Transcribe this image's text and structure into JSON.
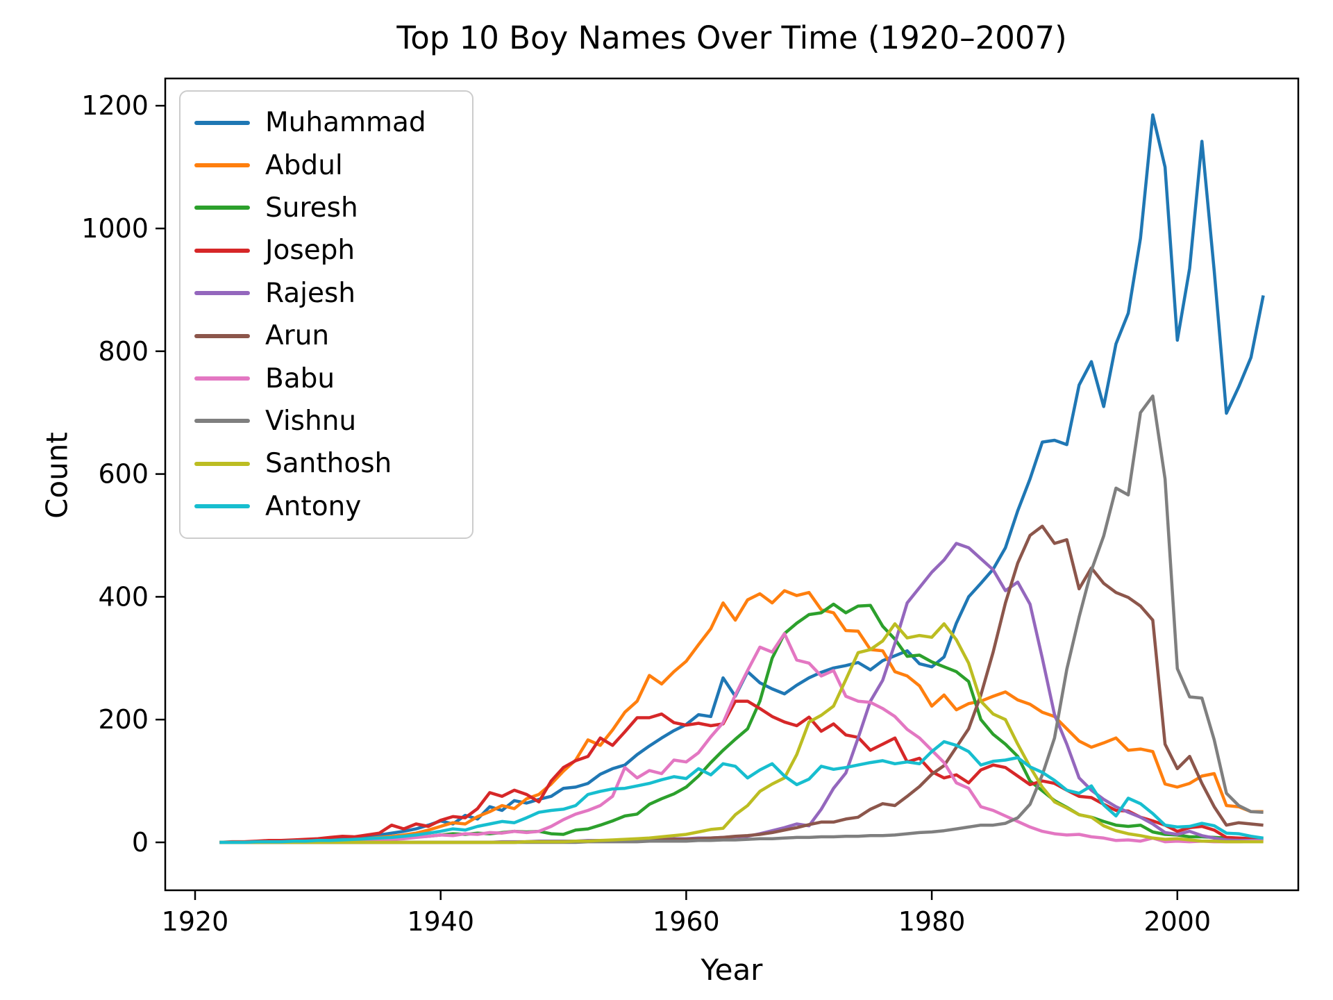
{
  "title": "Top 10 Boy Names Over Time (1920–2007)",
  "chart_data": {
    "type": "line",
    "title": "Top 10 Boy Names Over Time (1920–2007)",
    "xlabel": "Year",
    "ylabel": "Count",
    "x_start": 1922,
    "x_end": 2007,
    "x_ticks": [
      1920,
      1940,
      1960,
      1980,
      2000
    ],
    "y_ticks": [
      0,
      200,
      400,
      600,
      800,
      1000,
      1200
    ],
    "xlim": [
      1917.6,
      2009.9
    ],
    "ylim": [
      -62,
      1244
    ],
    "grid": false,
    "legend_position": "upper left",
    "axis_color": "#000000",
    "series": [
      {
        "name": "Muhammad",
        "color": "#1f77b4",
        "values": [
          0,
          0,
          0,
          1,
          1,
          2,
          2,
          3,
          4,
          5,
          6,
          8,
          10,
          12,
          15,
          18,
          22,
          28,
          35,
          30,
          44,
          38,
          58,
          52,
          68,
          64,
          70,
          75,
          88,
          90,
          96,
          111,
          120,
          126,
          143,
          157,
          170,
          182,
          192,
          208,
          205,
          268,
          238,
          278,
          260,
          250,
          242,
          256,
          268,
          277,
          284,
          288,
          293,
          281,
          296,
          304,
          312,
          291,
          286,
          302,
          357,
          400,
          422,
          445,
          480,
          540,
          592,
          652,
          655,
          648,
          745,
          783,
          710,
          812,
          862,
          984,
          1185,
          1100,
          818,
          935,
          1142,
          931,
          699,
          742,
          790,
          891
        ]
      },
      {
        "name": "Abdul",
        "color": "#ff7f0e",
        "values": [
          0,
          0,
          0,
          0,
          1,
          1,
          2,
          2,
          3,
          3,
          4,
          5,
          6,
          8,
          10,
          12,
          15,
          20,
          26,
          32,
          30,
          42,
          50,
          60,
          55,
          71,
          78,
          95,
          116,
          134,
          167,
          158,
          183,
          212,
          230,
          272,
          258,
          278,
          295,
          322,
          348,
          390,
          362,
          395,
          405,
          390,
          410,
          402,
          407,
          379,
          374,
          345,
          344,
          314,
          312,
          278,
          271,
          255,
          222,
          240,
          216,
          226,
          230,
          238,
          245,
          232,
          225,
          212,
          205,
          185,
          165,
          155,
          162,
          170,
          150,
          152,
          148,
          95,
          90,
          96,
          108,
          112,
          60,
          58,
          50,
          50
        ]
      },
      {
        "name": "Suresh",
        "color": "#2ca02c",
        "values": [
          0,
          0,
          0,
          0,
          0,
          1,
          1,
          1,
          2,
          2,
          3,
          3,
          4,
          5,
          6,
          8,
          9,
          10,
          12,
          14,
          13,
          15,
          14,
          16,
          18,
          17,
          18,
          14,
          13,
          20,
          22,
          28,
          35,
          43,
          46,
          62,
          71,
          79,
          90,
          108,
          130,
          150,
          168,
          185,
          230,
          300,
          340,
          357,
          371,
          374,
          388,
          374,
          385,
          386,
          352,
          331,
          303,
          305,
          294,
          286,
          278,
          262,
          200,
          176,
          160,
          140,
          100,
          84,
          68,
          57,
          45,
          41,
          34,
          28,
          26,
          28,
          17,
          13,
          12,
          9,
          9,
          8,
          7,
          6,
          6,
          5
        ]
      },
      {
        "name": "Joseph",
        "color": "#d62728",
        "values": [
          0,
          1,
          1,
          2,
          3,
          3,
          4,
          5,
          6,
          8,
          10,
          9,
          12,
          15,
          28,
          22,
          30,
          26,
          36,
          42,
          40,
          55,
          81,
          75,
          85,
          78,
          66,
          100,
          122,
          133,
          140,
          170,
          158,
          180,
          203,
          203,
          209,
          195,
          191,
          194,
          190,
          193,
          230,
          230,
          218,
          205,
          196,
          190,
          204,
          181,
          193,
          175,
          171,
          150,
          160,
          170,
          131,
          137,
          115,
          105,
          110,
          97,
          118,
          126,
          122,
          108,
          94,
          100,
          96,
          85,
          75,
          73,
          62,
          52,
          51,
          41,
          35,
          28,
          18,
          24,
          26,
          20,
          8,
          7,
          6,
          6
        ]
      },
      {
        "name": "Rajesh",
        "color": "#9467bd",
        "values": [
          0,
          0,
          0,
          0,
          0,
          0,
          0,
          0,
          0,
          0,
          0,
          0,
          0,
          0,
          0,
          0,
          0,
          0,
          0,
          0,
          0,
          0,
          0,
          1,
          1,
          1,
          2,
          2,
          2,
          2,
          3,
          3,
          3,
          4,
          4,
          5,
          5,
          6,
          6,
          7,
          7,
          8,
          9,
          10,
          14,
          19,
          24,
          30,
          27,
          54,
          88,
          113,
          170,
          230,
          264,
          324,
          390,
          415,
          440,
          460,
          487,
          480,
          462,
          444,
          410,
          424,
          388,
          300,
          208,
          160,
          105,
          85,
          70,
          58,
          49,
          41,
          30,
          16,
          13,
          18,
          11,
          7,
          4,
          3,
          3,
          3
        ]
      },
      {
        "name": "Arun",
        "color": "#8c564b",
        "values": [
          0,
          0,
          0,
          0,
          0,
          0,
          0,
          0,
          0,
          0,
          0,
          0,
          0,
          0,
          0,
          0,
          0,
          0,
          0,
          0,
          0,
          0,
          0,
          0,
          0,
          1,
          1,
          1,
          1,
          1,
          2,
          2,
          2,
          3,
          3,
          4,
          4,
          5,
          5,
          6,
          7,
          8,
          10,
          11,
          13,
          16,
          20,
          24,
          29,
          33,
          33,
          38,
          41,
          54,
          63,
          60,
          75,
          91,
          111,
          125,
          155,
          185,
          240,
          310,
          390,
          455,
          500,
          515,
          487,
          493,
          413,
          447,
          422,
          407,
          399,
          385,
          362,
          160,
          120,
          140,
          96,
          58,
          28,
          32,
          30,
          28
        ]
      },
      {
        "name": "Babu",
        "color": "#e377c2",
        "values": [
          0,
          0,
          0,
          0,
          0,
          0,
          1,
          1,
          1,
          2,
          2,
          3,
          3,
          4,
          5,
          6,
          8,
          10,
          12,
          11,
          14,
          13,
          16,
          15,
          18,
          16,
          18,
          26,
          37,
          46,
          52,
          60,
          75,
          122,
          105,
          117,
          112,
          134,
          131,
          146,
          172,
          195,
          240,
          280,
          318,
          310,
          340,
          297,
          292,
          271,
          280,
          238,
          230,
          228,
          218,
          205,
          184,
          170,
          150,
          130,
          97,
          88,
          58,
          52,
          43,
          34,
          25,
          18,
          14,
          12,
          13,
          9,
          7,
          3,
          4,
          2,
          7,
          1,
          2,
          1,
          2,
          1,
          1,
          1,
          2,
          2
        ]
      },
      {
        "name": "Vishnu",
        "color": "#7f7f7f",
        "values": [
          0,
          0,
          0,
          0,
          0,
          0,
          0,
          0,
          0,
          0,
          0,
          0,
          0,
          0,
          0,
          0,
          0,
          0,
          0,
          0,
          0,
          0,
          0,
          0,
          0,
          0,
          0,
          0,
          0,
          0,
          1,
          1,
          1,
          1,
          1,
          2,
          2,
          2,
          2,
          3,
          3,
          4,
          4,
          5,
          6,
          6,
          7,
          8,
          8,
          9,
          9,
          10,
          10,
          11,
          11,
          12,
          14,
          16,
          17,
          19,
          22,
          25,
          28,
          28,
          31,
          40,
          62,
          110,
          170,
          282,
          367,
          443,
          499,
          577,
          566,
          700,
          727,
          592,
          283,
          237,
          235,
          167,
          80,
          60,
          50,
          49
        ]
      },
      {
        "name": "Santhosh",
        "color": "#bcbd22",
        "values": [
          0,
          0,
          0,
          0,
          0,
          0,
          0,
          0,
          0,
          0,
          0,
          0,
          0,
          0,
          0,
          0,
          0,
          0,
          0,
          0,
          0,
          0,
          0,
          0,
          0,
          1,
          1,
          1,
          1,
          2,
          2,
          3,
          4,
          5,
          6,
          7,
          9,
          11,
          13,
          17,
          21,
          23,
          45,
          60,
          83,
          95,
          105,
          143,
          196,
          207,
          222,
          265,
          309,
          314,
          328,
          356,
          333,
          337,
          334,
          356,
          330,
          292,
          230,
          209,
          200,
          160,
          123,
          90,
          66,
          56,
          45,
          41,
          27,
          19,
          14,
          11,
          7,
          5,
          6,
          4,
          2,
          2,
          1,
          1,
          1,
          1
        ]
      },
      {
        "name": "Antony",
        "color": "#17becf",
        "values": [
          0,
          0,
          0,
          1,
          1,
          1,
          2,
          2,
          3,
          3,
          4,
          5,
          6,
          7,
          8,
          10,
          12,
          15,
          18,
          22,
          20,
          26,
          30,
          34,
          32,
          40,
          49,
          52,
          54,
          60,
          78,
          83,
          87,
          88,
          92,
          96,
          102,
          107,
          104,
          120,
          110,
          128,
          124,
          105,
          118,
          128,
          108,
          94,
          103,
          124,
          119,
          122,
          126,
          130,
          133,
          128,
          131,
          128,
          148,
          164,
          158,
          148,
          126,
          132,
          134,
          138,
          123,
          114,
          101,
          85,
          80,
          92,
          61,
          43,
          72,
          63,
          47,
          28,
          25,
          26,
          31,
          27,
          15,
          14,
          10,
          7
        ]
      }
    ]
  }
}
